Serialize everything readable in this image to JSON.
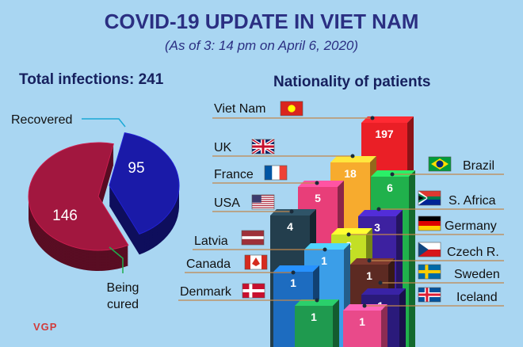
{
  "title": "COVID-19 UPDATE IN VIET NAM",
  "subtitle": "(As of 3: 14 pm on April 6, 2020)",
  "total_infections": "Total infections: 241",
  "nationality_heading": "Nationality of patients",
  "logo_text": "VGP",
  "chart_data": [
    {
      "type": "pie",
      "slices": [
        {
          "label": "Recovered",
          "value": 95,
          "value_text": "95",
          "color": "#1a1aa8"
        },
        {
          "label": "Being cured",
          "value": 146,
          "value_text": "146",
          "color": "#a2173f"
        }
      ]
    },
    {
      "type": "bar",
      "categories": [
        "Viet Nam",
        "UK",
        "France",
        "USA",
        "Latvia",
        "Canada",
        "Denmark",
        "Brazil",
        "S. Africa",
        "Germany",
        "Czech R.",
        "Sweden",
        "Iceland"
      ],
      "values": [
        197,
        18,
        5,
        4,
        1,
        1,
        1,
        6,
        3,
        2,
        1,
        1,
        1
      ],
      "value_texts": [
        "197",
        "18",
        "5",
        "4",
        "1",
        "1",
        "1",
        "6",
        "3",
        "2",
        "1",
        "1",
        "1"
      ],
      "colors": [
        "#ea1f26",
        "#f7ab2e",
        "#e83e79",
        "#233e4d",
        "#3b9ee8",
        "#1d6cc0",
        "#1f9a4f",
        "#20b14c",
        "#3d21a0",
        "#c3df25",
        "#5c2a22",
        "#2a1a7b",
        "#e94a8a"
      ]
    }
  ]
}
